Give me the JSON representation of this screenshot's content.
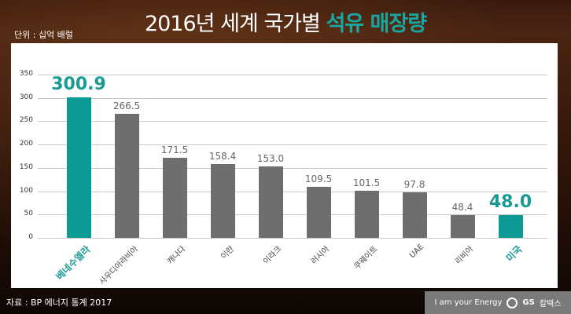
{
  "title": {
    "prefix": "2016년 세계 국가별 ",
    "highlight": "석유 매장량"
  },
  "unit": "단위 : 십억 배럴",
  "source": "자료 : BP 에너지 통계 2017",
  "brand": {
    "slogan": "I am your Energy",
    "name": "GS",
    "name_suffix": "칼텍스"
  },
  "colors": {
    "highlight": "#0e9a94",
    "bar": "#6e6e6e"
  },
  "chart_data": {
    "type": "bar",
    "title": "2016년 세계 국가별 석유 매장량",
    "ylabel": "단위 : 십억 배럴",
    "xlabel": "",
    "ylim": [
      0,
      350
    ],
    "yticks": [
      0,
      50,
      100,
      150,
      200,
      250,
      300,
      350
    ],
    "grid": true,
    "categories": [
      "베네수엘라",
      "사우디아라비아",
      "캐나다",
      "이란",
      "이라크",
      "러시아",
      "쿠웨이트",
      "UAE",
      "리비아",
      "미국"
    ],
    "values": [
      300.9,
      266.5,
      171.5,
      158.4,
      153.0,
      109.5,
      101.5,
      97.8,
      48.4,
      48.0
    ],
    "value_labels": [
      "300.9",
      "266.5",
      "171.5",
      "158.4",
      "153.0",
      "109.5",
      "101.5",
      "97.8",
      "48.4",
      "48.0"
    ],
    "highlighted": [
      "베네수엘라",
      "미국"
    ]
  }
}
